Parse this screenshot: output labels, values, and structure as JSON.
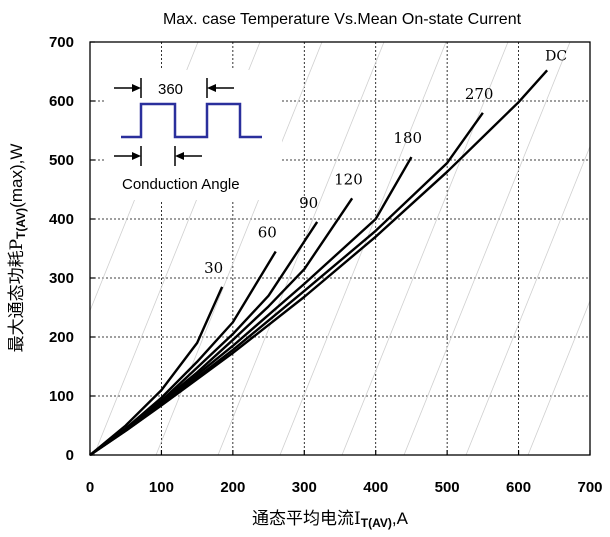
{
  "chart_data": {
    "type": "line",
    "title": "Max. case Temperature Vs.Mean On-state Current",
    "xlabel": "通态平均电流I",
    "xlabel_sub": "T(AV)",
    "xlabel_unit": ",A",
    "ylabel": "最大通态功耗P",
    "ylabel_sub": "T(AV)",
    "ylabel_unit": "(max),W",
    "xlim": [
      0,
      700
    ],
    "ylim": [
      0,
      700
    ],
    "xticks": [
      0,
      100,
      200,
      300,
      400,
      500,
      600,
      700
    ],
    "yticks": [
      0,
      100,
      200,
      300,
      400,
      500,
      600,
      700
    ],
    "grid": true,
    "series": [
      {
        "name": "30",
        "x": [
          0,
          50,
          100,
          150,
          185
        ],
        "y": [
          0,
          50,
          110,
          190,
          285
        ]
      },
      {
        "name": "60",
        "x": [
          0,
          50,
          100,
          150,
          200,
          260
        ],
        "y": [
          0,
          45,
          97,
          158,
          225,
          345
        ]
      },
      {
        "name": "90",
        "x": [
          0,
          50,
          100,
          150,
          200,
          250,
          318
        ],
        "y": [
          0,
          43,
          92,
          148,
          205,
          270,
          395
        ]
      },
      {
        "name": "120",
        "x": [
          0,
          50,
          100,
          150,
          200,
          250,
          300,
          367
        ],
        "y": [
          0,
          42,
          90,
          140,
          195,
          252,
          315,
          435
        ]
      },
      {
        "name": "180",
        "x": [
          0,
          50,
          100,
          200,
          300,
          400,
          450
        ],
        "y": [
          0,
          42,
          87,
          185,
          290,
          400,
          505
        ]
      },
      {
        "name": "270",
        "x": [
          0,
          50,
          100,
          200,
          300,
          400,
          500,
          550
        ],
        "y": [
          0,
          41,
          85,
          178,
          278,
          380,
          495,
          580
        ]
      },
      {
        "name": "DC",
        "x": [
          0,
          50,
          100,
          200,
          300,
          400,
          500,
          600,
          640
        ],
        "y": [
          0,
          41,
          84,
          173,
          268,
          370,
          480,
          598,
          652
        ]
      }
    ],
    "inset": {
      "period_label": "360",
      "angle_label": "Conduction Angle"
    }
  },
  "colors": {
    "curve": "#000000",
    "grid": "#000000",
    "waveform": "#2a2f9c"
  }
}
